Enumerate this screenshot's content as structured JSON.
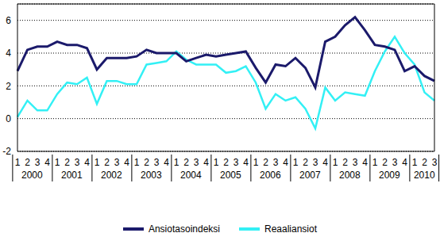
{
  "chart_data": {
    "type": "line",
    "categories": [
      "1",
      "2",
      "3",
      "4",
      "1",
      "2",
      "3",
      "4",
      "1",
      "2",
      "3",
      "4",
      "1",
      "2",
      "3",
      "4",
      "1",
      "2",
      "3",
      "4",
      "1",
      "2",
      "3",
      "4",
      "1",
      "2",
      "3",
      "4",
      "1",
      "2",
      "3",
      "4",
      "1",
      "2",
      "3",
      "4",
      "1",
      "2",
      "3",
      "4",
      "1",
      "2",
      "3"
    ],
    "years": [
      "2000",
      "2001",
      "2002",
      "2003",
      "2004",
      "2005",
      "2006",
      "2007",
      "2008",
      "2009",
      "2010"
    ],
    "series": [
      {
        "name": "Ansiotasoindeksi",
        "color": "#1b1a6b",
        "values": [
          2.9,
          4.2,
          4.4,
          4.4,
          4.7,
          4.5,
          4.5,
          4.3,
          3.0,
          3.7,
          3.7,
          3.7,
          3.8,
          4.2,
          4.0,
          4.0,
          4.0,
          3.5,
          3.7,
          3.9,
          3.8,
          3.9,
          4.0,
          4.1,
          3.1,
          2.2,
          3.3,
          3.2,
          3.7,
          3.1,
          1.9,
          4.7,
          5.0,
          5.7,
          6.2,
          5.4,
          4.5,
          4.4,
          4.2,
          2.9,
          3.2,
          2.6,
          2.3
        ]
      },
      {
        "name": "Reaaliansiot",
        "color": "#33f0f5",
        "values": [
          0.1,
          1.1,
          0.5,
          0.5,
          1.5,
          2.2,
          2.1,
          2.5,
          0.9,
          2.3,
          2.3,
          2.1,
          2.1,
          3.3,
          3.4,
          3.5,
          4.1,
          3.6,
          3.3,
          3.3,
          3.3,
          2.8,
          2.9,
          3.2,
          2.2,
          0.6,
          1.5,
          1.1,
          1.3,
          0.6,
          -0.6,
          1.9,
          1.1,
          1.6,
          1.5,
          1.4,
          2.9,
          4.1,
          5.0,
          4.0,
          3.3,
          1.6,
          1.1
        ]
      }
    ],
    "ylim": [
      -2,
      7
    ],
    "yticks": [
      -2,
      0,
      2,
      4,
      6
    ],
    "grid": true,
    "legend": "bottom"
  }
}
